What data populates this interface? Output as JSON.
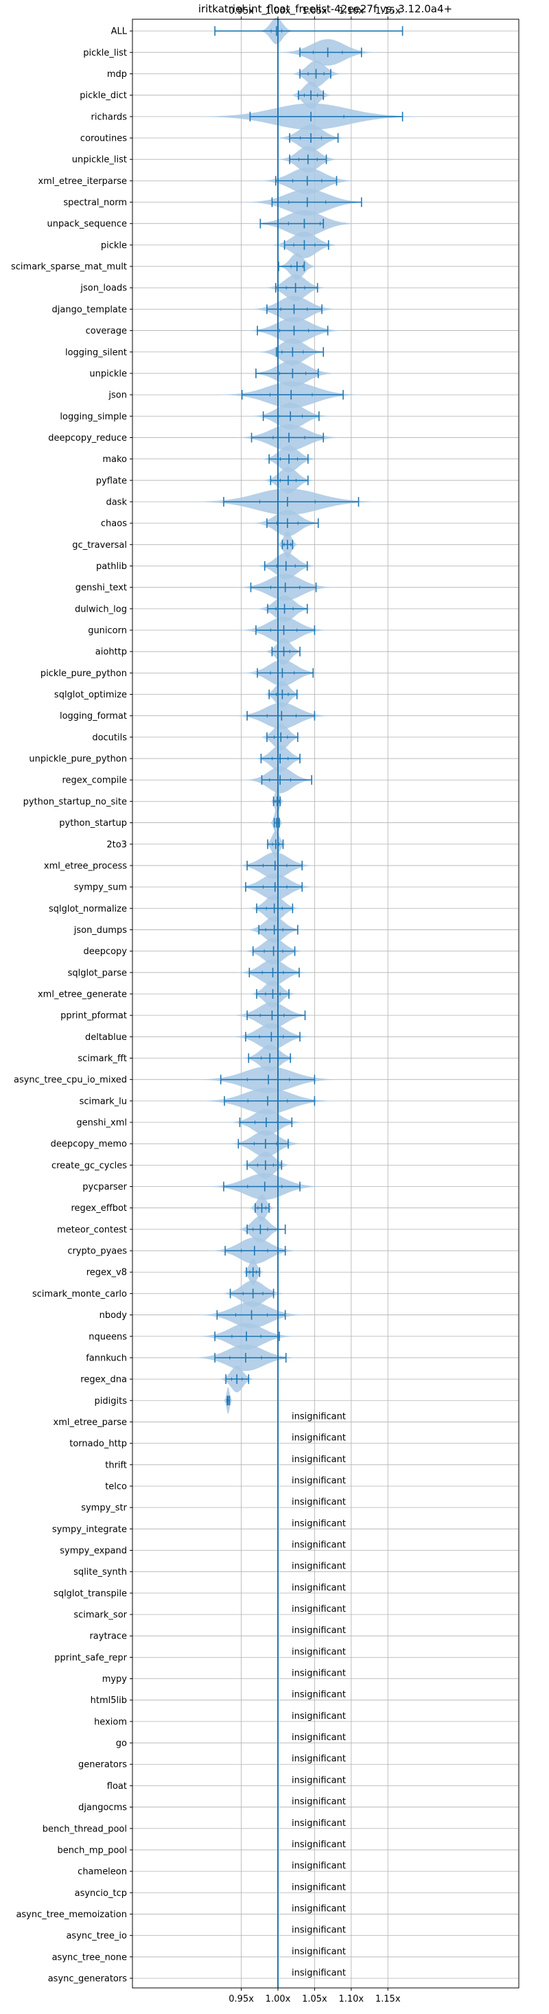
{
  "chart_data": {
    "type": "violin",
    "title": "iritkatriel-int_float_freelist-42ee27f vs. 3.12.0a4+",
    "xlim": [
      0.9,
      1.18
    ],
    "x_ticks": [
      {
        "value": 0.95,
        "label": "0.95x"
      },
      {
        "value": 1.0,
        "label": "1.00x"
      },
      {
        "value": 1.05,
        "label": "1.05x"
      },
      {
        "value": 1.1,
        "label": "1.10x"
      },
      {
        "value": 1.15,
        "label": "1.15x"
      }
    ],
    "ticks_top_and_bottom": true,
    "reference_line": 1.0,
    "grid": true,
    "insignificant_label": "insignificant",
    "color": "#1f77b4",
    "fill_color": "#a8c8e4",
    "benchmarks": [
      {
        "name": "ALL",
        "min": 0.914,
        "max": 1.17,
        "median": 0.998,
        "spread": 0.008
      },
      {
        "name": "pickle_list",
        "min": 1.03,
        "max": 1.114,
        "median": 1.068,
        "spread": 0.022
      },
      {
        "name": "mdp",
        "min": 1.03,
        "max": 1.072,
        "median": 1.052,
        "spread": 0.012
      },
      {
        "name": "pickle_dict",
        "min": 1.028,
        "max": 1.062,
        "median": 1.045,
        "spread": 0.01
      },
      {
        "name": "richards",
        "min": 0.962,
        "max": 1.17,
        "median": 1.045,
        "spread": 0.05
      },
      {
        "name": "coroutines",
        "min": 1.016,
        "max": 1.082,
        "median": 1.045,
        "spread": 0.016
      },
      {
        "name": "unpickle_list",
        "min": 1.016,
        "max": 1.066,
        "median": 1.041,
        "spread": 0.014
      },
      {
        "name": "xml_etree_iterparse",
        "min": 0.997,
        "max": 1.08,
        "median": 1.04,
        "spread": 0.022
      },
      {
        "name": "spectral_norm",
        "min": 0.992,
        "max": 1.114,
        "median": 1.04,
        "spread": 0.028
      },
      {
        "name": "unpack_sequence",
        "min": 0.976,
        "max": 1.062,
        "median": 1.036,
        "spread": 0.024
      },
      {
        "name": "pickle",
        "min": 1.009,
        "max": 1.069,
        "median": 1.036,
        "spread": 0.016
      },
      {
        "name": "scimark_sparse_mat_mult",
        "min": 1.001,
        "max": 1.036,
        "median": 1.026,
        "spread": 0.009
      },
      {
        "name": "json_loads",
        "min": 0.997,
        "max": 1.054,
        "median": 1.024,
        "spread": 0.014
      },
      {
        "name": "django_template",
        "min": 0.985,
        "max": 1.06,
        "median": 1.022,
        "spread": 0.02
      },
      {
        "name": "coverage",
        "min": 0.972,
        "max": 1.068,
        "median": 1.022,
        "spread": 0.022
      },
      {
        "name": "logging_silent",
        "min": 0.998,
        "max": 1.062,
        "median": 1.02,
        "spread": 0.016
      },
      {
        "name": "unpickle",
        "min": 0.97,
        "max": 1.055,
        "median": 1.02,
        "spread": 0.02
      },
      {
        "name": "json",
        "min": 0.951,
        "max": 1.089,
        "median": 1.018,
        "spread": 0.032
      },
      {
        "name": "logging_simple",
        "min": 0.98,
        "max": 1.056,
        "median": 1.017,
        "spread": 0.018
      },
      {
        "name": "deepcopy_reduce",
        "min": 0.964,
        "max": 1.062,
        "median": 1.015,
        "spread": 0.024
      },
      {
        "name": "mako",
        "min": 0.988,
        "max": 1.041,
        "median": 1.015,
        "spread": 0.013
      },
      {
        "name": "pyflate",
        "min": 0.99,
        "max": 1.041,
        "median": 1.014,
        "spread": 0.012
      },
      {
        "name": "dask",
        "min": 0.926,
        "max": 1.11,
        "median": 1.013,
        "spread": 0.042
      },
      {
        "name": "chaos",
        "min": 0.985,
        "max": 1.055,
        "median": 1.013,
        "spread": 0.016
      },
      {
        "name": "gc_traversal",
        "min": 1.006,
        "max": 1.02,
        "median": 1.013,
        "spread": 0.005
      },
      {
        "name": "pathlib",
        "min": 0.982,
        "max": 1.04,
        "median": 1.011,
        "spread": 0.014
      },
      {
        "name": "genshi_text",
        "min": 0.963,
        "max": 1.052,
        "median": 1.01,
        "spread": 0.022
      },
      {
        "name": "dulwich_log",
        "min": 0.986,
        "max": 1.04,
        "median": 1.009,
        "spread": 0.013
      },
      {
        "name": "gunicorn",
        "min": 0.97,
        "max": 1.05,
        "median": 1.008,
        "spread": 0.02
      },
      {
        "name": "aiohttp",
        "min": 0.992,
        "max": 1.03,
        "median": 1.008,
        "spread": 0.009
      },
      {
        "name": "pickle_pure_python",
        "min": 0.972,
        "max": 1.048,
        "median": 1.006,
        "spread": 0.018
      },
      {
        "name": "sqlglot_optimize",
        "min": 0.988,
        "max": 1.026,
        "median": 1.006,
        "spread": 0.009
      },
      {
        "name": "logging_format",
        "min": 0.958,
        "max": 1.05,
        "median": 1.005,
        "spread": 0.022
      },
      {
        "name": "docutils",
        "min": 0.985,
        "max": 1.027,
        "median": 1.004,
        "spread": 0.01
      },
      {
        "name": "unpickle_pure_python",
        "min": 0.977,
        "max": 1.03,
        "median": 1.003,
        "spread": 0.012
      },
      {
        "name": "regex_compile",
        "min": 0.978,
        "max": 1.046,
        "median": 1.003,
        "spread": 0.016
      },
      {
        "name": "python_startup_no_site",
        "min": 0.994,
        "max": 1.003,
        "median": 0.999,
        "spread": 0.003
      },
      {
        "name": "python_startup",
        "min": 0.995,
        "max": 1.002,
        "median": 0.998,
        "spread": 0.003
      },
      {
        "name": "2to3",
        "min": 0.986,
        "max": 1.007,
        "median": 0.997,
        "spread": 0.005
      },
      {
        "name": "xml_etree_process",
        "min": 0.958,
        "max": 1.033,
        "median": 0.996,
        "spread": 0.018
      },
      {
        "name": "sympy_sum",
        "min": 0.956,
        "max": 1.033,
        "median": 0.996,
        "spread": 0.018
      },
      {
        "name": "sqlglot_normalize",
        "min": 0.971,
        "max": 1.02,
        "median": 0.995,
        "spread": 0.012
      },
      {
        "name": "json_dumps",
        "min": 0.974,
        "max": 1.027,
        "median": 0.995,
        "spread": 0.013
      },
      {
        "name": "deepcopy",
        "min": 0.966,
        "max": 1.023,
        "median": 0.994,
        "spread": 0.014
      },
      {
        "name": "sqlglot_parse",
        "min": 0.961,
        "max": 1.029,
        "median": 0.993,
        "spread": 0.016
      },
      {
        "name": "xml_etree_generate",
        "min": 0.971,
        "max": 1.015,
        "median": 0.993,
        "spread": 0.011
      },
      {
        "name": "pprint_pformat",
        "min": 0.958,
        "max": 1.037,
        "median": 0.992,
        "spread": 0.018
      },
      {
        "name": "deltablue",
        "min": 0.956,
        "max": 1.03,
        "median": 0.991,
        "spread": 0.018
      },
      {
        "name": "scimark_fft",
        "min": 0.96,
        "max": 1.017,
        "median": 0.989,
        "spread": 0.013
      },
      {
        "name": "async_tree_cpu_io_mixed",
        "min": 0.922,
        "max": 1.05,
        "median": 0.987,
        "spread": 0.032
      },
      {
        "name": "scimark_lu",
        "min": 0.927,
        "max": 1.05,
        "median": 0.986,
        "spread": 0.03
      },
      {
        "name": "genshi_xml",
        "min": 0.948,
        "max": 1.019,
        "median": 0.984,
        "spread": 0.017
      },
      {
        "name": "deepcopy_memo",
        "min": 0.946,
        "max": 1.014,
        "median": 0.983,
        "spread": 0.017
      },
      {
        "name": "create_gc_cycles",
        "min": 0.958,
        "max": 1.005,
        "median": 0.983,
        "spread": 0.012
      },
      {
        "name": "pycparser",
        "min": 0.926,
        "max": 1.03,
        "median": 0.982,
        "spread": 0.026
      },
      {
        "name": "regex_effbot",
        "min": 0.969,
        "max": 0.988,
        "median": 0.978,
        "spread": 0.006
      },
      {
        "name": "meteor_contest",
        "min": 0.958,
        "max": 1.01,
        "median": 0.976,
        "spread": 0.011
      },
      {
        "name": "crypto_pyaes",
        "min": 0.928,
        "max": 1.01,
        "median": 0.968,
        "spread": 0.02
      },
      {
        "name": "regex_v8",
        "min": 0.957,
        "max": 0.975,
        "median": 0.966,
        "spread": 0.005
      },
      {
        "name": "scimark_monte_carlo",
        "min": 0.935,
        "max": 0.994,
        "median": 0.966,
        "spread": 0.015
      },
      {
        "name": "nbody",
        "min": 0.917,
        "max": 1.01,
        "median": 0.964,
        "spread": 0.024
      },
      {
        "name": "nqueens",
        "min": 0.914,
        "max": 1.002,
        "median": 0.957,
        "spread": 0.022
      },
      {
        "name": "fannkuch",
        "min": 0.914,
        "max": 1.011,
        "median": 0.956,
        "spread": 0.024
      },
      {
        "name": "regex_dna",
        "min": 0.929,
        "max": 0.96,
        "median": 0.944,
        "spread": 0.008
      },
      {
        "name": "pidigits",
        "min": 0.931,
        "max": 0.934,
        "median": 0.932,
        "spread": 0.002
      },
      {
        "name": "xml_etree_parse",
        "insignificant": true
      },
      {
        "name": "tornado_http",
        "insignificant": true
      },
      {
        "name": "thrift",
        "insignificant": true
      },
      {
        "name": "telco",
        "insignificant": true
      },
      {
        "name": "sympy_str",
        "insignificant": true
      },
      {
        "name": "sympy_integrate",
        "insignificant": true
      },
      {
        "name": "sympy_expand",
        "insignificant": true
      },
      {
        "name": "sqlite_synth",
        "insignificant": true
      },
      {
        "name": "sqlglot_transpile",
        "insignificant": true
      },
      {
        "name": "scimark_sor",
        "insignificant": true
      },
      {
        "name": "raytrace",
        "insignificant": true
      },
      {
        "name": "pprint_safe_repr",
        "insignificant": true
      },
      {
        "name": "mypy",
        "insignificant": true
      },
      {
        "name": "html5lib",
        "insignificant": true
      },
      {
        "name": "hexiom",
        "insignificant": true
      },
      {
        "name": "go",
        "insignificant": true
      },
      {
        "name": "generators",
        "insignificant": true
      },
      {
        "name": "float",
        "insignificant": true
      },
      {
        "name": "djangocms",
        "insignificant": true
      },
      {
        "name": "bench_thread_pool",
        "insignificant": true
      },
      {
        "name": "bench_mp_pool",
        "insignificant": true
      },
      {
        "name": "chameleon",
        "insignificant": true
      },
      {
        "name": "asyncio_tcp",
        "insignificant": true
      },
      {
        "name": "async_tree_memoization",
        "insignificant": true
      },
      {
        "name": "async_tree_io",
        "insignificant": true
      },
      {
        "name": "async_tree_none",
        "insignificant": true
      },
      {
        "name": "async_generators",
        "insignificant": true
      }
    ]
  }
}
